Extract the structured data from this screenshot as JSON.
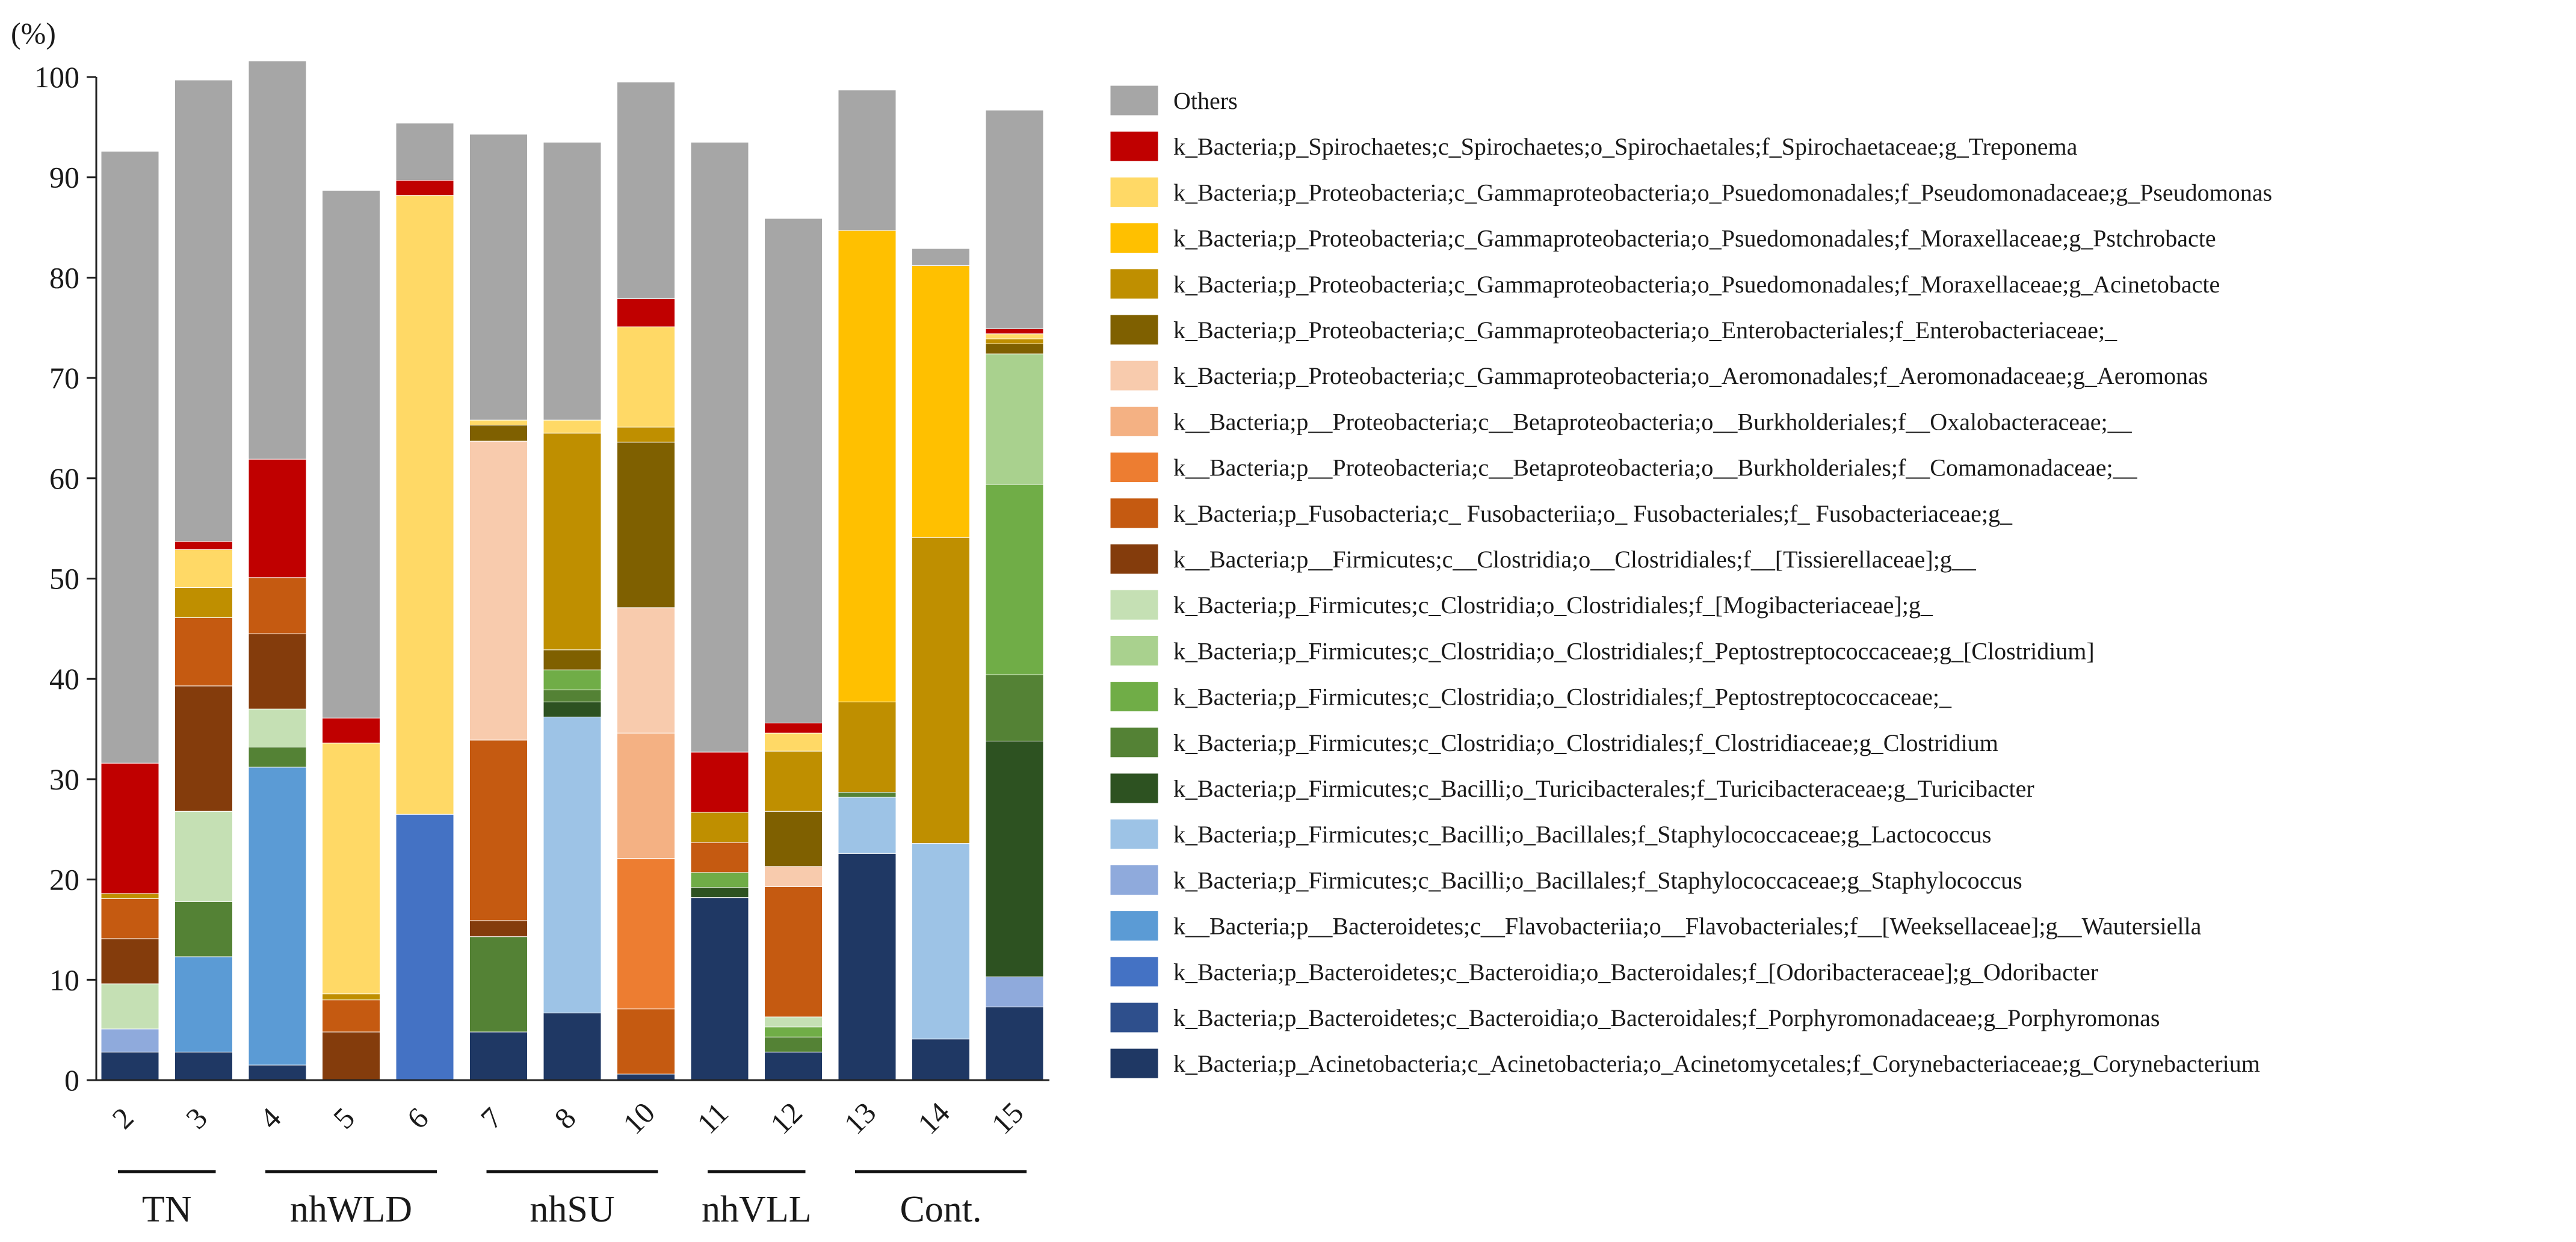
{
  "chart_data": {
    "type": "stacked-bar",
    "ylabel": "(%)",
    "ylim": [
      0,
      100
    ],
    "yticks": [
      0,
      10,
      20,
      30,
      40,
      50,
      60,
      70,
      80,
      90,
      100
    ],
    "categories": [
      "2",
      "3",
      "4",
      "5",
      "6",
      "7",
      "8",
      "10",
      "11",
      "12",
      "13",
      "14",
      "15"
    ],
    "groups": [
      {
        "label": "TN",
        "members": [
          "2",
          "3"
        ]
      },
      {
        "label": "nhWLD",
        "members": [
          "4",
          "5",
          "6"
        ]
      },
      {
        "label": "nhSU",
        "members": [
          "7",
          "8",
          "10"
        ]
      },
      {
        "label": "nhVLL",
        "members": [
          "11",
          "12"
        ]
      },
      {
        "label": "Cont.",
        "members": [
          "13",
          "14",
          "15"
        ]
      }
    ],
    "legend_position": "right",
    "series": [
      {
        "name": "k_Bacteria;p_Acinetobacteria;c_Acinetobacteria;o_Acinetomycetales;f_Corynebacteriaceae;g_Corynebacterium",
        "color": "#1f3864",
        "values": [
          2.8,
          2.8,
          1.5,
          0,
          0,
          4.8,
          6.7,
          0.6,
          18.2,
          2.8,
          22.6,
          4.1,
          7.3
        ]
      },
      {
        "name": "k_Bacteria;p_Bacteroidetes;c_Bacteroidia;o_Bacteroidales;f_Porphyromonadaceae;g_Porphyromonas",
        "color": "#2e4f8c",
        "values": [
          0,
          0,
          0,
          0,
          0,
          0,
          0,
          0,
          0,
          0,
          0,
          0,
          0
        ]
      },
      {
        "name": "k_Bacteria;p_Bacteroidetes;c_Bacteroidia;o_Bacteroidales;f_[Odoribacteraceae];g_Odoribacter",
        "color": "#4472c4",
        "values": [
          0,
          0,
          0,
          0,
          26.5,
          0,
          0,
          0,
          0,
          0,
          0,
          0,
          0
        ]
      },
      {
        "name": "k__Bacteria;p__Bacteroidetes;c__Flavobacteriia;o__Flavobacteriales;f__[Weeksellaceae];g__Wautersiella",
        "color": "#5b9bd5",
        "values": [
          0,
          9.5,
          29.7,
          0,
          0,
          0,
          0,
          0,
          0,
          0,
          0,
          0,
          0
        ]
      },
      {
        "name": "k_Bacteria;p_Firmicutes;c_Bacilli;o_Bacillales;f_Staphylococcaceae;g_Staphylococcus",
        "color": "#8faadc",
        "values": [
          2.3,
          0,
          0,
          0,
          0,
          0,
          0,
          0,
          0,
          0,
          0,
          0,
          3.0
        ]
      },
      {
        "name": "k_Bacteria;p_Firmicutes;c_Bacilli;o_Bacillales;f_Staphylococcaceae;g_Lactococcus",
        "color": "#9dc3e6",
        "values": [
          0,
          0,
          0,
          0,
          0,
          0,
          29.5,
          0,
          0,
          0,
          5.6,
          19.5,
          0
        ]
      },
      {
        "name": "k_Bacteria;p_Firmicutes;c_Bacilli;o_Turicibacterales;f_Turicibacteraceae;g_Turicibacter",
        "color": "#2d5221",
        "values": [
          0,
          0,
          0,
          0,
          0,
          0,
          1.5,
          0,
          1.0,
          0,
          0,
          0,
          23.5
        ]
      },
      {
        "name": "k_Bacteria;p_Firmicutes;c_Clostridia;o_Clostridiales;f_Clostridiaceae;g_Clostridium",
        "color": "#548235",
        "values": [
          0,
          5.5,
          2.0,
          0,
          0,
          9.5,
          1.2,
          0,
          0,
          1.5,
          0.5,
          0,
          6.6
        ]
      },
      {
        "name": "k_Bacteria;p_Firmicutes;c_Clostridia;o_Clostridiales;f_Peptostreptococcaceae;_",
        "color": "#70ad47",
        "values": [
          0,
          0,
          0,
          0,
          0,
          0,
          2.0,
          0,
          1.5,
          1.0,
          0,
          0,
          19.0
        ]
      },
      {
        "name": "k_Bacteria;p_Firmicutes;c_Clostridia;o_Clostridiales;f_Peptostreptococcaceae;g_[Clostridium]",
        "color": "#a9d18e",
        "values": [
          0,
          0,
          0,
          0,
          0,
          0,
          0,
          0,
          0,
          0,
          0,
          0,
          13.0
        ]
      },
      {
        "name": "k_Bacteria;p_Firmicutes;c_Clostridia;o_Clostridiales;f_[Mogibacteriaceae];g_",
        "color": "#c5e0b4",
        "values": [
          4.5,
          9.0,
          3.8,
          0,
          0,
          0,
          0,
          0,
          0,
          1.0,
          0,
          0,
          0
        ]
      },
      {
        "name": "k__Bacteria;p__Firmicutes;c__Clostridia;o__Clostridiales;f__[Tissierellaceae];g__",
        "color": "#843c0c",
        "values": [
          4.5,
          12.5,
          7.5,
          4.8,
          0,
          1.6,
          0,
          0,
          0,
          0,
          0,
          0,
          0
        ]
      },
      {
        "name": "k_Bacteria;p_Fusobacteria;c_ Fusobacteriia;o_ Fusobacteriales;f_ Fusobacteriaceae;g_",
        "color": "#c55a11",
        "values": [
          4.0,
          6.8,
          5.6,
          3.2,
          0,
          18.0,
          0,
          6.5,
          3.0,
          13.0,
          0,
          0,
          0
        ]
      },
      {
        "name": "k__Bacteria;p__Proteobacteria;c__Betaproteobacteria;o__Burkholderiales;f__Comamonadaceae;__",
        "color": "#ed7d31",
        "values": [
          0,
          0,
          0,
          0,
          0,
          0,
          0,
          15.0,
          0,
          0,
          0,
          0,
          0
        ]
      },
      {
        "name": "k__Bacteria;p__Proteobacteria;c__Betaproteobacteria;o__Burkholderiales;f__Oxalobacteraceae;__",
        "color": "#f4b183",
        "values": [
          0,
          0,
          0,
          0,
          0,
          0,
          0,
          12.5,
          0,
          0,
          0,
          0,
          0
        ]
      },
      {
        "name": "k_Bacteria;p_Proteobacteria;c_Gammaproteobacteria;o_Aeromonadales;f_Aeromonadaceae;g_Aeromonas",
        "color": "#f8cbad",
        "values": [
          0,
          0,
          0,
          0,
          0,
          29.8,
          0,
          12.5,
          0,
          2.0,
          0,
          0,
          0
        ]
      },
      {
        "name": "k_Bacteria;p_Proteobacteria;c_Gammaproteobacteria;o_Enterobacteriales;f_Enterobacteriaceae;_",
        "color": "#7f6000",
        "values": [
          0,
          0,
          0,
          0,
          0,
          1.6,
          2.0,
          16.5,
          0,
          5.5,
          0,
          0,
          1.0
        ]
      },
      {
        "name": "k_Bacteria;p_Proteobacteria;c_Gammaproteobacteria;o_Psuedomonadales;f_Moraxellaceae;g_Acinetobacte",
        "color": "#bf8f00",
        "values": [
          0.5,
          3.0,
          0,
          0.6,
          0,
          0,
          21.6,
          1.5,
          3.0,
          6.0,
          9.0,
          30.5,
          0.5
        ]
      },
      {
        "name": "k_Bacteria;p_Proteobacteria;c_Gammaproteobacteria;o_Psuedomonadales;f_Moraxellaceae;g_Pstchrobacte",
        "color": "#ffc000",
        "values": [
          0,
          0,
          0,
          0,
          0,
          0,
          0,
          0,
          0,
          0,
          47.0,
          27.1,
          0
        ]
      },
      {
        "name": "k_Bacteria;p_Proteobacteria;c_Gammaproteobacteria;o_Psuedomonadales;f_Pseudomonadaceae;g_Pseudomonas",
        "color": "#ffd966",
        "values": [
          0,
          3.8,
          0,
          25.0,
          61.7,
          0.5,
          1.3,
          10.0,
          0,
          1.8,
          0,
          0,
          0.5
        ]
      },
      {
        "name": "k_Bacteria;p_Spirochaetes;c_Spirochaetes;o_Spirochaetales;f_Spirochaetaceae;g_Treponema",
        "color": "#c00000",
        "values": [
          13.0,
          0.8,
          11.8,
          2.5,
          1.5,
          0,
          0,
          2.8,
          6.0,
          1.0,
          0,
          0,
          0.5
        ]
      },
      {
        "name": "Others",
        "color": "#a6a6a6",
        "values": [
          61.0,
          46.0,
          39.7,
          52.6,
          5.7,
          28.5,
          27.7,
          21.6,
          60.8,
          50.3,
          14.0,
          1.7,
          21.8
        ]
      }
    ]
  }
}
